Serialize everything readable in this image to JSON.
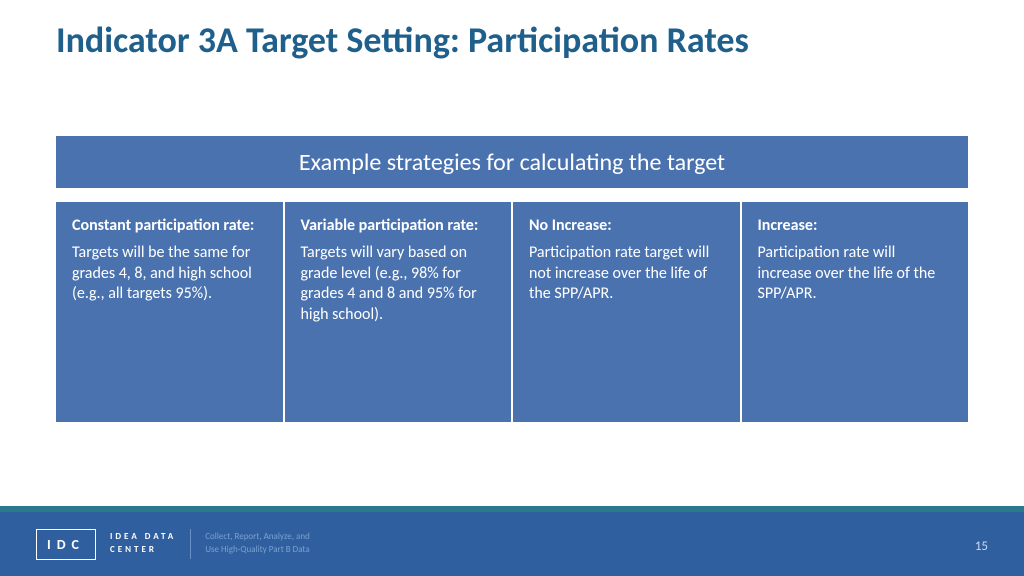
{
  "title": "Indicator 3A Target Setting: Participation Rates",
  "banner": "Example strategies for calculating the target",
  "cards": [
    {
      "title": "Constant participation rate:",
      "body": "Targets will be the same for grades 4, 8, and high school (e.g., all targets 95%)."
    },
    {
      "title": "Variable participation rate:",
      "body": "Targets will vary based on grade level (e.g., 98% for grades 4 and 8 and 95% for high school)."
    },
    {
      "title": "No Increase:",
      "body": "Participation rate target will not increase over the life of the SPP/APR."
    },
    {
      "title": "Increase:",
      "body": "Participation rate will increase over the life of the SPP/APR."
    }
  ],
  "footer": {
    "logo_abbr": "IDC",
    "logo_full_line1": "IDEA DATA",
    "logo_full_line2": "CENTER",
    "tagline_line1": "Collect, Report, Analyze, and",
    "tagline_line2": "Use High-Quality Part B Data",
    "page": "15"
  },
  "colors": {
    "title": "#1f5f8b",
    "block": "#4a72af",
    "footer": "#2f5f9e",
    "stripe": "#2a7a8c"
  }
}
